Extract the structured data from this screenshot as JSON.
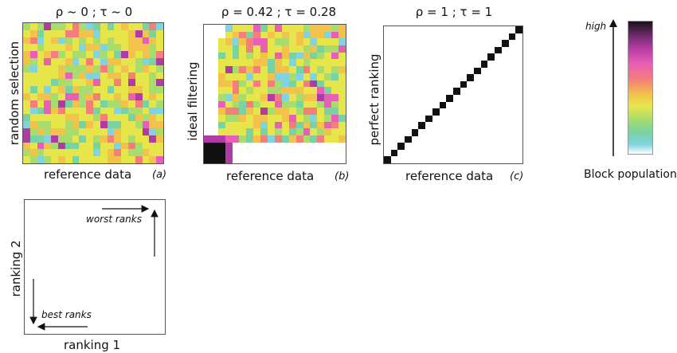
{
  "panels": {
    "a": {
      "title": "ρ ~ 0 ;  τ ~ 0",
      "xlabel": "reference data",
      "ylabel": "random selection",
      "id": "(a)"
    },
    "b": {
      "title": "ρ = 0.42 ; τ = 0.28",
      "xlabel": "reference data",
      "ylabel": "ideal filtering",
      "id": "(b)"
    },
    "c": {
      "title": "ρ = 1 ; τ = 1",
      "xlabel": "reference data",
      "ylabel": "perfect ranking",
      "id": "(c)"
    }
  },
  "legend": {
    "high_label": "high",
    "caption": "Block population"
  },
  "ranking_diagram": {
    "xlabel": "ranking 1",
    "ylabel": "ranking 2",
    "worst_label": "worst ranks",
    "best_label": "best ranks"
  },
  "colors": {
    "palette": [
      "#e6e64a",
      "#f2c24a",
      "#a8dc6d",
      "#78d2a2",
      "#7fd4e0",
      "#f47f7a",
      "#e85fb5",
      "#b13ba4"
    ],
    "black": "#111111",
    "frame": "#555555"
  }
}
